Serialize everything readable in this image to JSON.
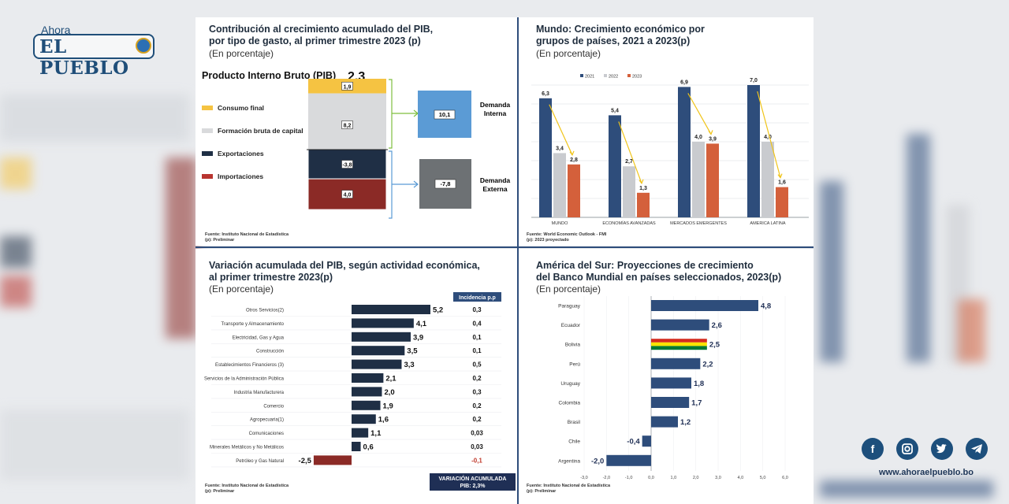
{
  "brand": {
    "ahora": "Ahora",
    "name": "EL PUEBLO",
    "site": "www.ahoraelpueblo.bo"
  },
  "social": {
    "icons": [
      "facebook-icon",
      "instagram-icon",
      "twitter-icon",
      "telegram-icon"
    ]
  },
  "colors": {
    "navy": "#1f2f45",
    "blue": "#2e4d7b",
    "gray": "#c9cbcf",
    "orange": "#d4603b",
    "yellow": "#f5c342",
    "lightblue": "#5b9bd5",
    "darkgray": "#6d7174",
    "darkred": "#8b2a26",
    "lightgray": "#d9dadc"
  },
  "chart_data": [
    {
      "type": "bar",
      "title": "Contribución al crecimiento acumulado del PIB,",
      "title2": "por tipo de gasto, al primer trimestre 2023 (p)",
      "subtitle": "(En porcentaje)",
      "header": "Producto Interno Bruto (PIB)",
      "total": "2,3",
      "legend": [
        "Consumo final",
        "Formación bruta de capital",
        "Exportaciones",
        "Importaciones"
      ],
      "values": [
        {
          "name": "Consumo final",
          "value": 1.9,
          "label": "1,9"
        },
        {
          "name": "Formación bruta de capital",
          "value": 8.2,
          "label": "8,2"
        },
        {
          "name": "Exportaciones",
          "value": -3.8,
          "label": "-3,8"
        },
        {
          "name": "Importaciones",
          "value": 4.0,
          "label": "4,0"
        }
      ],
      "demanda_interna": {
        "label": "Demanda",
        "label2": "Interna",
        "value": "10,1"
      },
      "demanda_externa": {
        "label": "Demanda",
        "label2": "Externa",
        "value": "-7,8"
      },
      "source": "Fuente: Instituto Nacional de Estadística",
      "source2": "(p): Preliminar"
    },
    {
      "type": "bar",
      "title": "Mundo: Crecimiento económico por",
      "title2": "grupos de países, 2021 a 2023(p)",
      "subtitle": "(En porcentaje)",
      "categories": [
        "MUNDO",
        "ECONOMÍAS AVANZADAS",
        "MERCADOS EMERGENTES",
        "AMERICA LATINA"
      ],
      "series": [
        {
          "name": "2021",
          "values": [
            6.3,
            5.4,
            6.9,
            7.0
          ],
          "labels": [
            "6,3",
            "5,4",
            "6,9",
            "7,0"
          ]
        },
        {
          "name": "2022",
          "values": [
            3.4,
            2.7,
            4.0,
            4.0
          ],
          "labels": [
            "3,4",
            "2,7",
            "4,0",
            "4,0"
          ]
        },
        {
          "name": "2023",
          "values": [
            2.8,
            1.3,
            3.9,
            1.6
          ],
          "labels": [
            "2,8",
            "1,3",
            "3,9",
            "1,6"
          ]
        }
      ],
      "ylim": [
        0,
        8
      ],
      "source": "Fuente: World Economic Outlook - FMI",
      "source2": "(p): 2023 proyectado"
    },
    {
      "type": "bar",
      "title": "Variación acumulada del PIB, según actividad económica,",
      "title2": "al primer trimestre 2023(p)",
      "subtitle": "(En porcentaje)",
      "incidencia_header": "Incidencia p.p",
      "categories": [
        "Otros Servicios(2)",
        "Transporte y Almacenamiento",
        "Electricidad, Gas y Agua",
        "Construcción",
        "Establecimientos Financieros (3)",
        "Servicios de la Administración Pública",
        "Industria Manufacturera",
        "Comercio",
        "Agropecuaria(1)",
        "Comunicaciones",
        "Minerales Metálicos y No Metálicos",
        "Petróleo y Gas Natural"
      ],
      "values": [
        5.2,
        4.1,
        3.9,
        3.5,
        3.3,
        2.1,
        2.0,
        1.9,
        1.6,
        1.1,
        0.6,
        -2.5
      ],
      "labels": [
        "5,2",
        "4,1",
        "3,9",
        "3,5",
        "3,3",
        "2,1",
        "2,0",
        "1,9",
        "1,6",
        "1,1",
        "0,6",
        "-2,5"
      ],
      "incidencia": [
        "0,3",
        "0,4",
        "0,1",
        "0,1",
        "0,5",
        "0,2",
        "0,3",
        "0,2",
        "0,2",
        "0,03",
        "0,03",
        "-0,1"
      ],
      "footer_box": "VARIACIÓN ACUMULADA",
      "footer_box2": "PIB: 2,3%",
      "source": "Fuente: Instituto Nacional de Estadística",
      "source2": "(p): Preliminar"
    },
    {
      "type": "bar",
      "title": "América del Sur: Proyecciones de crecimiento",
      "title2": "del Banco Mundial en países seleccionados, 2023(p)",
      "subtitle": "(En porcentaje)",
      "categories": [
        "Paraguay",
        "Ecuador",
        "Bolivia",
        "Perú",
        "Uruguay",
        "Colombia",
        "Brasil",
        "Chile",
        "Argentina"
      ],
      "values": [
        4.8,
        2.6,
        2.5,
        2.2,
        1.8,
        1.7,
        1.2,
        -0.4,
        -2.0
      ],
      "labels": [
        "4,8",
        "2,6",
        "2,5",
        "2,2",
        "1,8",
        "1,7",
        "1,2",
        "-0,4",
        "-2,0"
      ],
      "xlim": [
        -3,
        6
      ],
      "ticks": [
        "-3,0",
        "-2,0",
        "-1,0",
        "0,0",
        "1,0",
        "2,0",
        "3,0",
        "4,0",
        "5,0",
        "6,0"
      ],
      "source": "Fuente: Instituto Nacional de Estadística",
      "source2": "(p): Preliminar"
    }
  ]
}
